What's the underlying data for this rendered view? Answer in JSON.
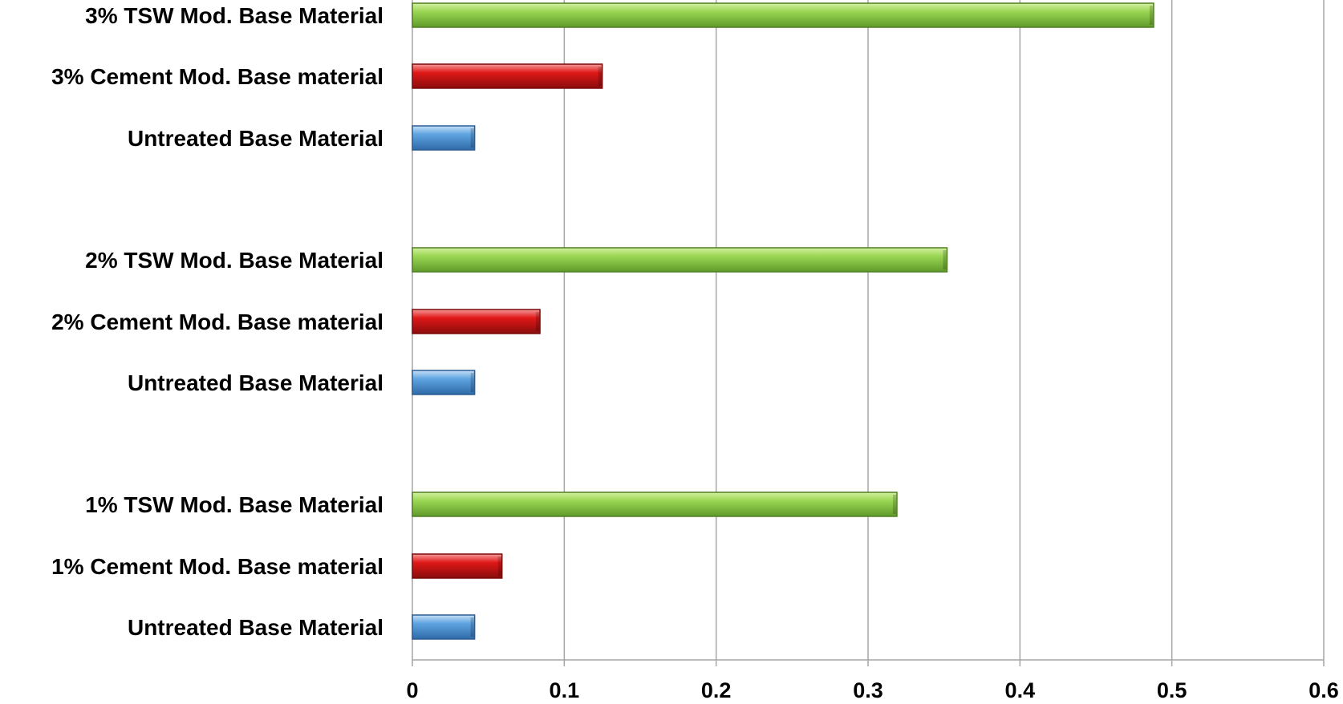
{
  "chart_data": {
    "type": "bar",
    "orientation": "horizontal",
    "xlim": [
      0,
      0.6
    ],
    "x_ticks": [
      0,
      0.1,
      0.2,
      0.3,
      0.4,
      0.5,
      0.6
    ],
    "x_tick_labels": [
      "0",
      "0.1",
      "0.2",
      "0.3",
      "0.4",
      "0.5",
      "0.6"
    ],
    "grid": true,
    "legend": "none",
    "bars": [
      {
        "label": "3% TSW Mod. Base Material",
        "value": 0.488,
        "color": "#92d050"
      },
      {
        "label": "3% Cement Mod. Base material",
        "value": 0.125,
        "color": "#e02020"
      },
      {
        "label": "Untreated Base Material",
        "value": 0.041,
        "color": "#5b9bd5"
      },
      {
        "label": "2% TSW Mod. Base Material",
        "value": 0.352,
        "color": "#92d050"
      },
      {
        "label": "2% Cement Mod. Base material",
        "value": 0.084,
        "color": "#e02020"
      },
      {
        "label": "Untreated Base Material",
        "value": 0.041,
        "color": "#5b9bd5"
      },
      {
        "label": "1% TSW Mod. Base Material",
        "value": 0.319,
        "color": "#92d050"
      },
      {
        "label": "1% Cement Mod. Base material",
        "value": 0.059,
        "color": "#e02020"
      },
      {
        "label": "Untreated Base Material",
        "value": 0.041,
        "color": "#5b9bd5"
      }
    ]
  }
}
